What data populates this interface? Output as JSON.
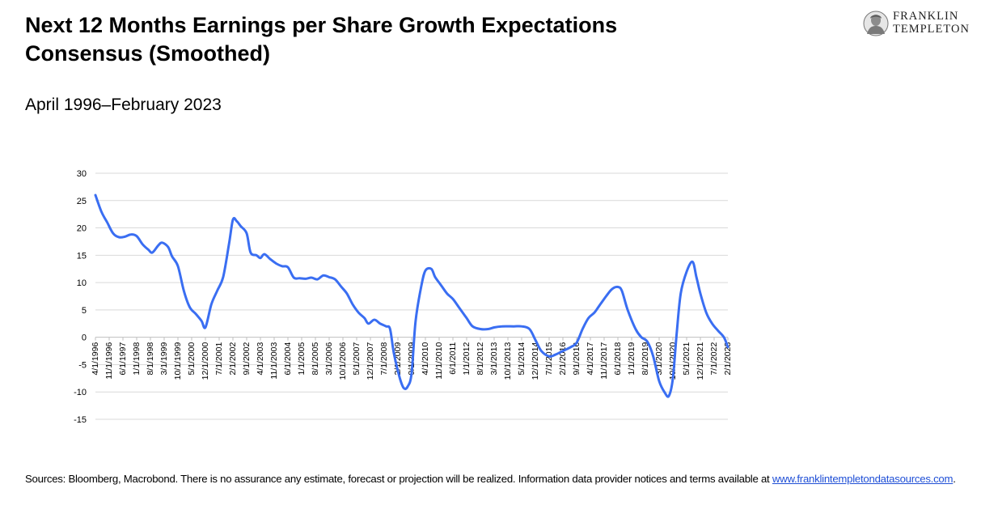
{
  "header": {
    "title": "Next 12 Months Earnings per Share Growth Expectations Consensus (Smoothed)",
    "subtitle": "April 1996–February 2023"
  },
  "logo": {
    "line1": "FRANKLIN",
    "line2": "TEMPLETON"
  },
  "footer": {
    "text": "Sources: Bloomberg, Macrobond. There is no assurance any estimate, forecast or projection will be realized. Information data provider notices and terms available at ",
    "link": "www.franklintempletondatasources.com",
    "end": "."
  },
  "colors": {
    "line": "#3a6ef2",
    "grid": "#d9d9d9",
    "link": "#1f4fd6"
  },
  "chart_data": {
    "type": "line",
    "title": "",
    "xlabel": "",
    "ylabel": "",
    "ylim": [
      -15,
      30
    ],
    "yticks": [
      30,
      25,
      20,
      15,
      10,
      5,
      0,
      -5,
      -10,
      -15
    ],
    "grid": true,
    "x_start": "4/1/1996",
    "x_end": "2/1/2023",
    "xtick_labels": [
      "4/1/1996",
      "11/1/1996",
      "6/1/1997",
      "1/1/1998",
      "8/1/1998",
      "3/1/1999",
      "10/1/1999",
      "5/1/2000",
      "12/1/2000",
      "7/1/2001",
      "2/1/2002",
      "9/1/2002",
      "4/1/2003",
      "11/1/2003",
      "6/1/2004",
      "1/1/2005",
      "8/1/2005",
      "3/1/2006",
      "10/1/2006",
      "5/1/2007",
      "12/1/2007",
      "7/1/2008",
      "2/1/2009",
      "9/1/2009",
      "4/1/2010",
      "11/1/2010",
      "6/1/2011",
      "1/1/2012",
      "8/1/2012",
      "3/1/2013",
      "10/1/2013",
      "5/1/2014",
      "12/1/2014",
      "7/1/2015",
      "2/1/2016",
      "9/1/2016",
      "4/1/2017",
      "11/1/2017",
      "6/1/2018",
      "1/1/2019",
      "8/1/2019",
      "3/1/2020",
      "10/1/2020",
      "5/1/2021",
      "12/1/2021",
      "7/1/2022",
      "2/1/2023"
    ],
    "series": [
      {
        "points": [
          [
            "4/1/1996",
            26.0
          ],
          [
            "7/1/1996",
            23.0
          ],
          [
            "10/1/1996",
            21.0
          ],
          [
            "1/1/1997",
            19.0
          ],
          [
            "4/1/1997",
            18.3
          ],
          [
            "7/1/1997",
            18.4
          ],
          [
            "10/1/1997",
            18.8
          ],
          [
            "1/1/1998",
            18.5
          ],
          [
            "4/1/1998",
            17.0
          ],
          [
            "7/1/1998",
            16.0
          ],
          [
            "9/1/1998",
            15.5
          ],
          [
            "12/1/1998",
            16.8
          ],
          [
            "2/1/1999",
            17.3
          ],
          [
            "5/1/1999",
            16.5
          ],
          [
            "7/1/1999",
            14.8
          ],
          [
            "10/1/1999",
            13.0
          ],
          [
            "1/1/2000",
            8.5
          ],
          [
            "4/1/2000",
            5.5
          ],
          [
            "7/1/2000",
            4.3
          ],
          [
            "10/1/2000",
            3.0
          ],
          [
            "12/1/2000",
            1.8
          ],
          [
            "3/1/2001",
            6.0
          ],
          [
            "6/1/2001",
            8.5
          ],
          [
            "9/1/2001",
            11.0
          ],
          [
            "12/1/2001",
            17.0
          ],
          [
            "2/1/2002",
            21.5
          ],
          [
            "4/1/2002",
            21.2
          ],
          [
            "6/1/2002",
            20.3
          ],
          [
            "9/1/2002",
            19.0
          ],
          [
            "11/1/2002",
            15.5
          ],
          [
            "2/1/2003",
            15.0
          ],
          [
            "4/1/2003",
            14.5
          ],
          [
            "6/1/2003",
            15.2
          ],
          [
            "9/1/2003",
            14.3
          ],
          [
            "12/1/2003",
            13.5
          ],
          [
            "3/1/2004",
            13.0
          ],
          [
            "6/1/2004",
            12.8
          ],
          [
            "9/1/2004",
            10.9
          ],
          [
            "12/1/2004",
            10.8
          ],
          [
            "3/1/2005",
            10.7
          ],
          [
            "6/1/2005",
            10.9
          ],
          [
            "9/1/2005",
            10.6
          ],
          [
            "12/1/2005",
            11.3
          ],
          [
            "3/1/2006",
            11.0
          ],
          [
            "6/1/2006",
            10.6
          ],
          [
            "9/1/2006",
            9.3
          ],
          [
            "12/1/2006",
            8.0
          ],
          [
            "3/1/2007",
            6.0
          ],
          [
            "6/1/2007",
            4.5
          ],
          [
            "9/1/2007",
            3.5
          ],
          [
            "11/1/2007",
            2.5
          ],
          [
            "2/1/2008",
            3.2
          ],
          [
            "5/1/2008",
            2.5
          ],
          [
            "8/1/2008",
            2.0
          ],
          [
            "10/1/2008",
            1.5
          ],
          [
            "12/1/2008",
            -3.0
          ],
          [
            "3/1/2009",
            -7.5
          ],
          [
            "5/1/2009",
            -9.3
          ],
          [
            "7/1/2009",
            -9.0
          ],
          [
            "9/1/2009",
            -6.5
          ],
          [
            "11/1/2009",
            3.0
          ],
          [
            "2/1/2010",
            9.5
          ],
          [
            "4/1/2010",
            12.2
          ],
          [
            "7/1/2010",
            12.5
          ],
          [
            "9/1/2010",
            11.0
          ],
          [
            "12/1/2010",
            9.5
          ],
          [
            "3/1/2011",
            8.0
          ],
          [
            "6/1/2011",
            7.0
          ],
          [
            "9/1/2011",
            5.5
          ],
          [
            "1/1/2012",
            3.5
          ],
          [
            "4/1/2012",
            2.0
          ],
          [
            "8/1/2012",
            1.5
          ],
          [
            "12/1/2012",
            1.5
          ],
          [
            "3/1/2013",
            1.8
          ],
          [
            "7/1/2013",
            2.0
          ],
          [
            "1/1/2014",
            2.0
          ],
          [
            "5/1/2014",
            2.0
          ],
          [
            "9/1/2014",
            1.5
          ],
          [
            "12/1/2014",
            -0.5
          ],
          [
            "3/1/2015",
            -2.5
          ],
          [
            "7/1/2015",
            -3.5
          ],
          [
            "10/1/2015",
            -3.2
          ],
          [
            "2/1/2016",
            -2.5
          ],
          [
            "6/1/2016",
            -1.8
          ],
          [
            "9/1/2016",
            -1.0
          ],
          [
            "12/1/2016",
            1.5
          ],
          [
            "3/1/2017",
            3.5
          ],
          [
            "6/1/2017",
            4.5
          ],
          [
            "9/1/2017",
            6.0
          ],
          [
            "12/1/2017",
            7.5
          ],
          [
            "3/1/2018",
            8.8
          ],
          [
            "6/1/2018",
            9.2
          ],
          [
            "8/1/2018",
            8.5
          ],
          [
            "11/1/2018",
            5.0
          ],
          [
            "3/1/2019",
            1.5
          ],
          [
            "6/1/2019",
            0.0
          ],
          [
            "9/1/2019",
            -0.8
          ],
          [
            "12/1/2019",
            -3.5
          ],
          [
            "3/1/2020",
            -8.0
          ],
          [
            "6/1/2020",
            -10.2
          ],
          [
            "8/1/2020",
            -10.7
          ],
          [
            "10/1/2020",
            -7.5
          ],
          [
            "12/1/2020",
            1.0
          ],
          [
            "2/1/2021",
            8.0
          ],
          [
            "5/1/2021",
            12.0
          ],
          [
            "8/1/2021",
            13.8
          ],
          [
            "10/1/2021",
            11.0
          ],
          [
            "12/1/2021",
            8.0
          ],
          [
            "3/1/2022",
            4.5
          ],
          [
            "6/1/2022",
            2.5
          ],
          [
            "9/1/2022",
            1.2
          ],
          [
            "12/1/2022",
            0.0
          ],
          [
            "2/1/2023",
            -1.8
          ]
        ]
      }
    ]
  }
}
